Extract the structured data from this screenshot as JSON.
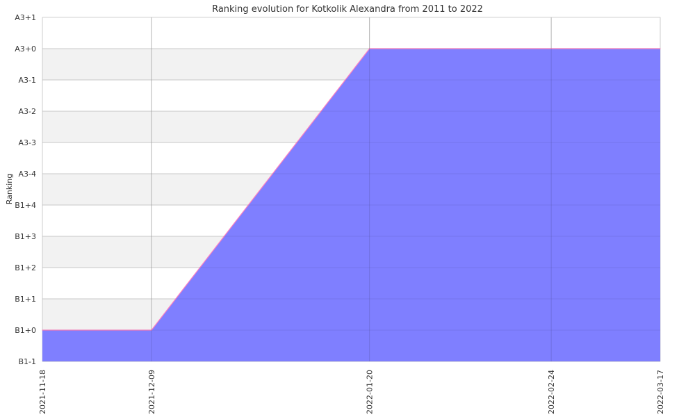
{
  "chart_data": {
    "type": "area",
    "title": "Ranking evolution for Kotkolik Alexandra from 2011 to 2022",
    "xlabel": "",
    "ylabel": "Ranking",
    "x_ticks": [
      "2021-11-18",
      "2021-12-09",
      "2022-01-20",
      "2022-02-24",
      "2022-03-17"
    ],
    "y_ticks": [
      "B1-1",
      "B1+0",
      "B1+1",
      "B1+2",
      "B1+3",
      "B1+4",
      "A3-4",
      "A3-3",
      "A3-2",
      "A3-1",
      "A3+0",
      "A3+1"
    ],
    "series": [
      {
        "values": [
          {
            "x": "2021-11-18",
            "y": "B1+0"
          },
          {
            "x": "2021-12-09",
            "y": "B1+0"
          },
          {
            "x": "2022-01-20",
            "y": "A3+0"
          },
          {
            "x": "2022-02-24",
            "y": "A3+0"
          },
          {
            "x": "2022-03-17",
            "y": "A3+0"
          }
        ]
      }
    ],
    "grid": true,
    "colors": {
      "fill": "#7f7fff",
      "line": "#ff80c0",
      "band": "#f2f2f2",
      "grid": "#cccccc"
    }
  }
}
